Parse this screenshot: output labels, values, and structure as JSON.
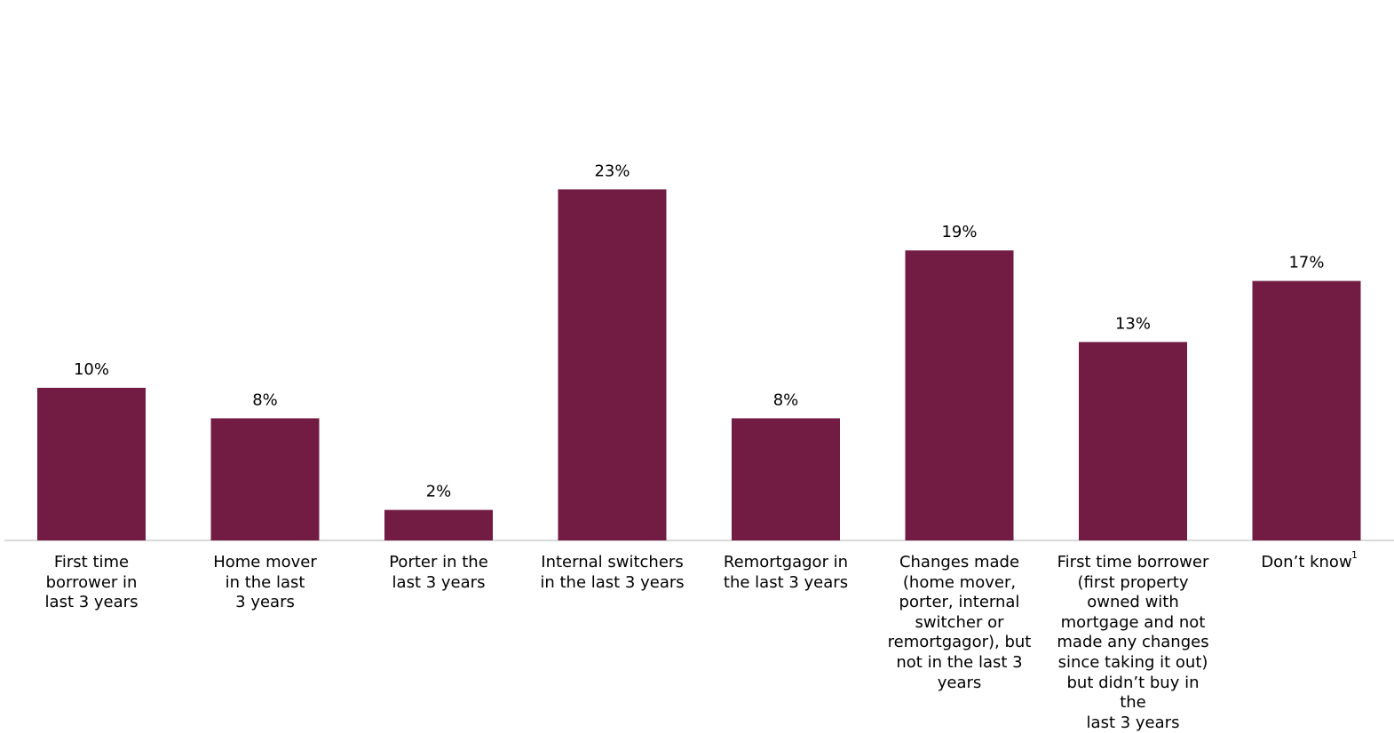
{
  "chart_data": {
    "type": "bar",
    "categories": [
      "First time\nborrower in\nlast 3 years",
      "Home mover\nin the last\n3 years",
      "Porter in the\nlast 3 years",
      "Internal switchers\nin  the last 3 years",
      "Remortgagor in\nthe last 3 years",
      "Changes made\n(home mover,\nporter, internal\nswitcher or\nremortgagor), but\nnot in the last 3\nyears",
      "First time borrower\n(first property\nowned with\nmortgage and not\nmade any changes\nsince taking it out)\nbut didn’t buy in the\nlast 3 years",
      "Don’t know"
    ],
    "values": [
      10,
      8,
      2,
      23,
      8,
      19,
      13,
      17
    ],
    "data_labels": [
      "10%",
      "8%",
      "2%",
      "23%",
      "8%",
      "19%",
      "13%",
      "17%"
    ],
    "footnote": "1",
    "bar_color": "#721c44",
    "axis_color": "#d9d9d9",
    "grid": false,
    "legend": "none"
  }
}
